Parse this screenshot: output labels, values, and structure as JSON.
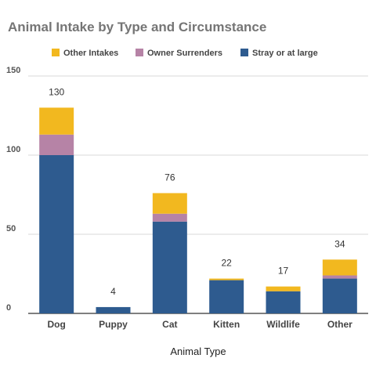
{
  "chart_data": {
    "type": "bar",
    "stacked": true,
    "title": "Animal Intake by Type and Circumstance",
    "xlabel": "Animal Type",
    "ylabel": "",
    "categories": [
      "Dog",
      "Puppy",
      "Cat",
      "Kitten",
      "Wildlife",
      "Other"
    ],
    "series": [
      {
        "name": "Stray or at large",
        "color": "#2e5b8f",
        "values": [
          100,
          4,
          58,
          21,
          14,
          22
        ]
      },
      {
        "name": "Owner Surrenders",
        "color": "#b683a6",
        "values": [
          13,
          0,
          5,
          0,
          0,
          2
        ]
      },
      {
        "name": "Other Intakes",
        "color": "#f2b81f",
        "values": [
          17,
          0,
          13,
          1,
          3,
          10
        ]
      }
    ],
    "totals": [
      130,
      4,
      76,
      22,
      17,
      34
    ],
    "ylim": [
      0,
      150
    ],
    "yticks": [
      0,
      50,
      100,
      150
    ],
    "grid": true,
    "legend_position": "top",
    "legend_order": [
      "Other Intakes",
      "Owner Surrenders",
      "Stray or at large"
    ]
  }
}
